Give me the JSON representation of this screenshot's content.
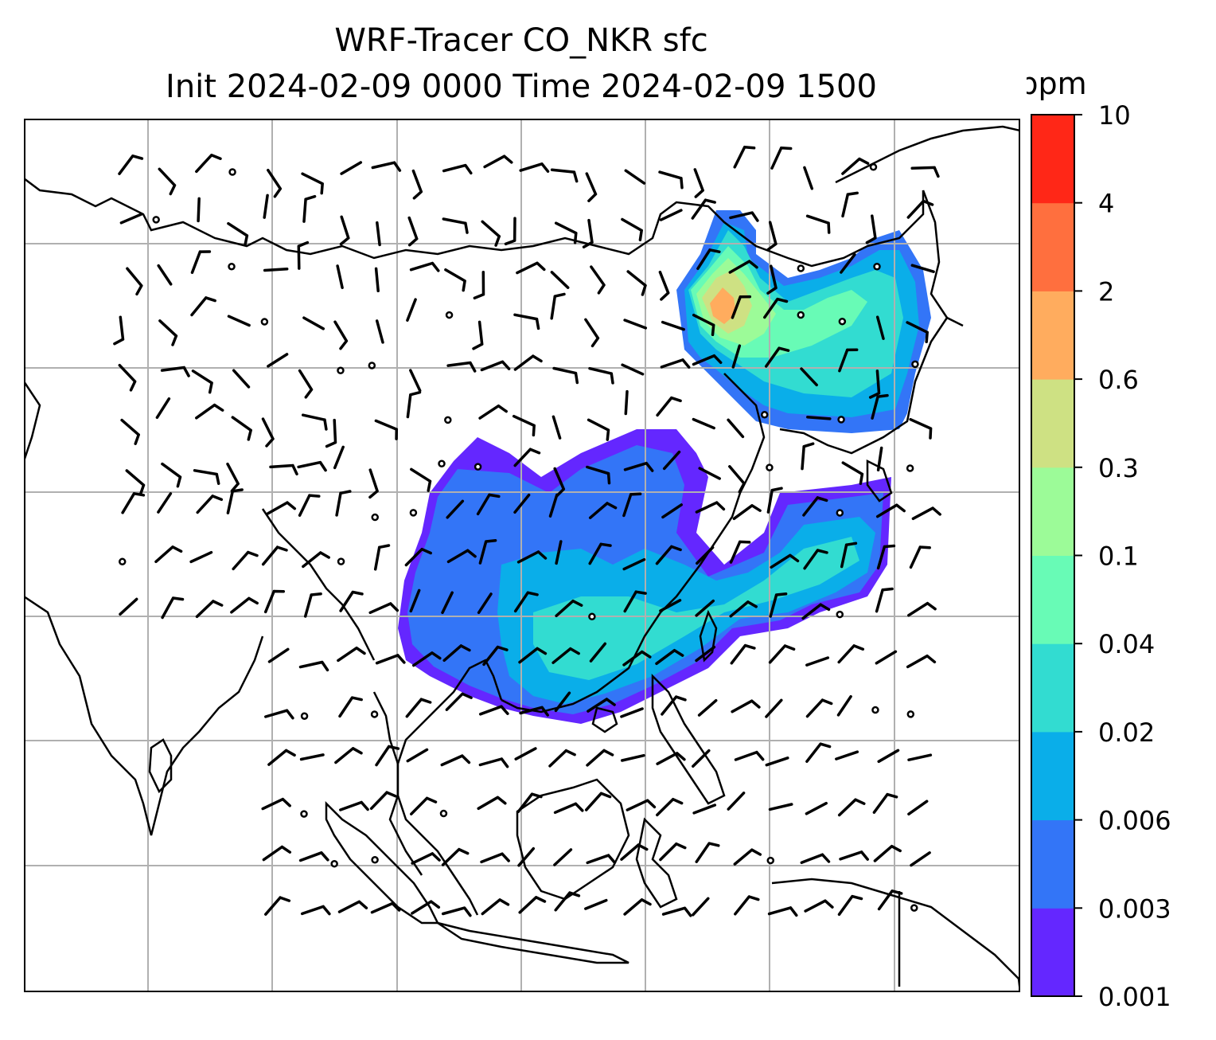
{
  "title": {
    "line1": "WRF-Tracer CO_NKR sfc",
    "line2": "Init 2024-02-09 0000 Time 2024-02-09 1500"
  },
  "colorbar": {
    "unit": "ppm",
    "levels": [
      "0.001",
      "0.003",
      "0.006",
      "0.02",
      "0.04",
      "0.1",
      "0.3",
      "0.6",
      "2",
      "4",
      "10"
    ],
    "colors": [
      "#6427ff",
      "#3375f7",
      "#0aaee9",
      "#32dcd1",
      "#68fbb6",
      "#9cfb98",
      "#cee183",
      "#ffac5e",
      "#ff6f3e",
      "#ff2717"
    ]
  },
  "map": {
    "variable": "CO_NKR tracer concentration (surface)",
    "overlays": [
      "coastlines",
      "country borders",
      "lat-lon gridlines",
      "wind barbs"
    ],
    "grid_color": "#b0b0b0"
  }
}
